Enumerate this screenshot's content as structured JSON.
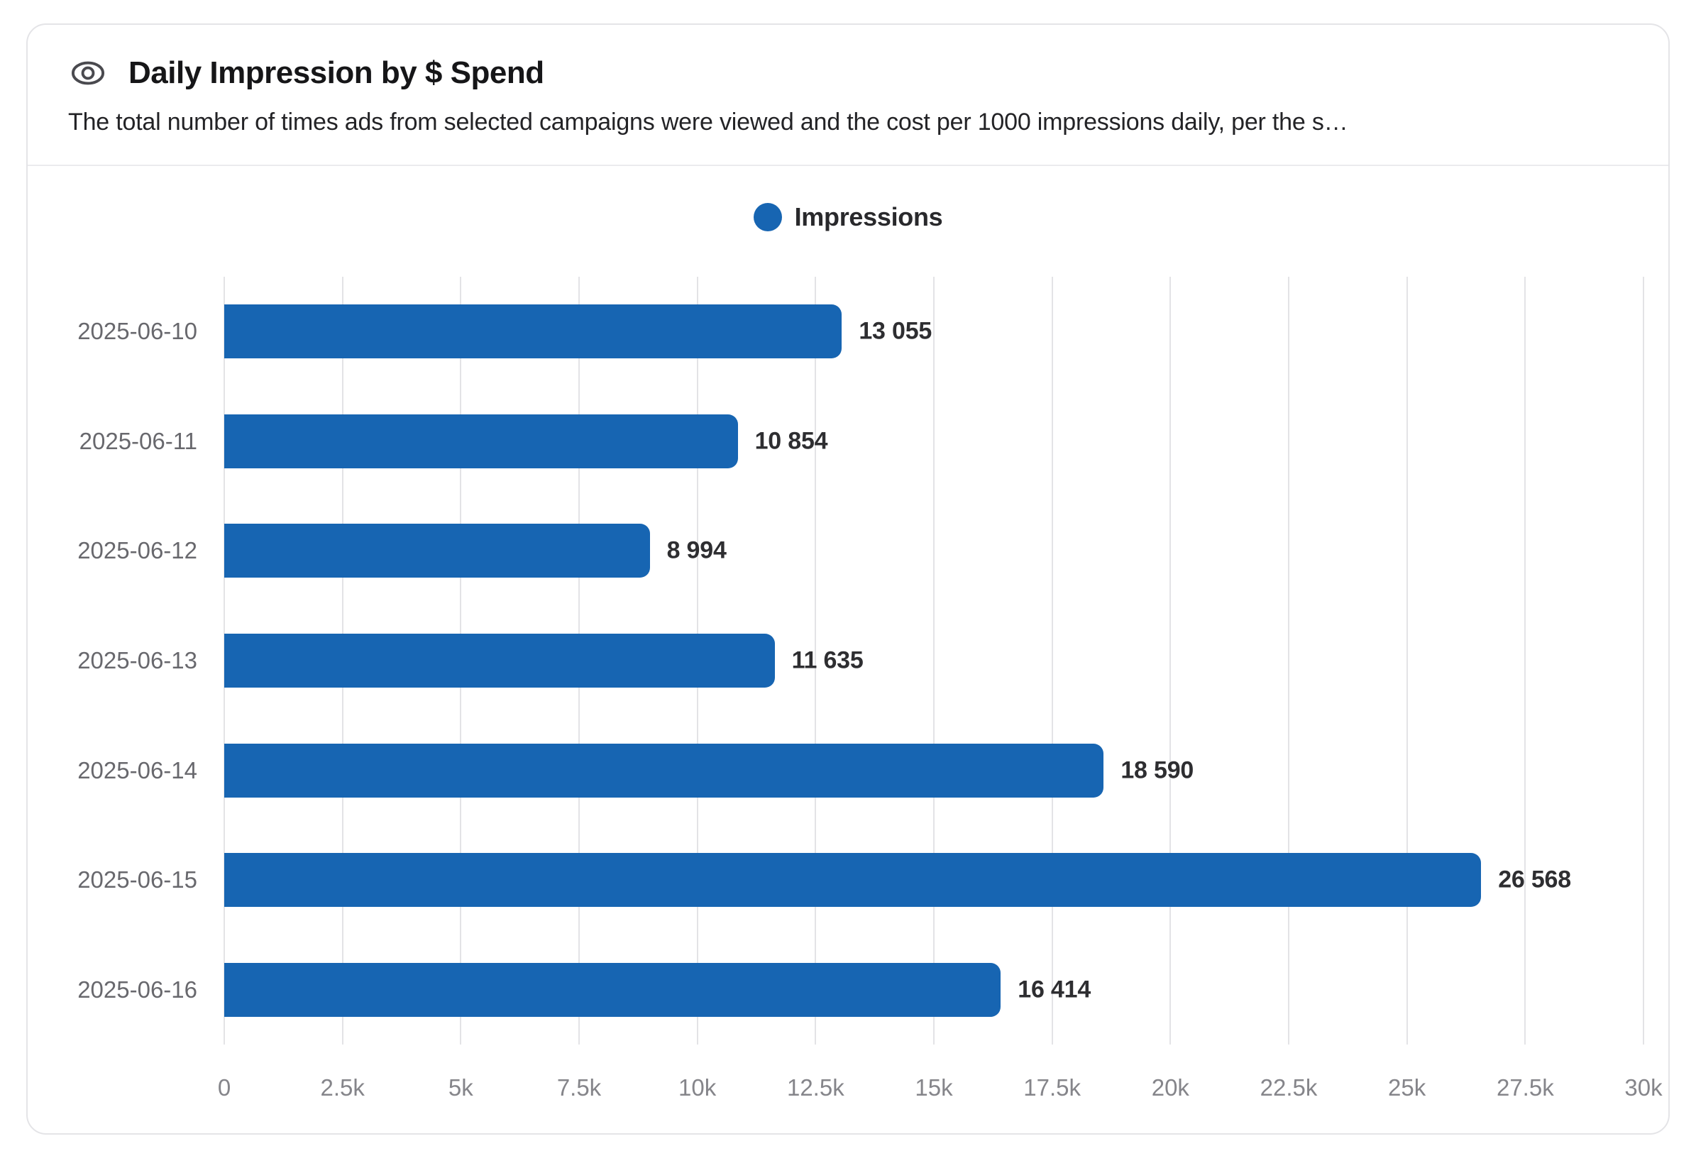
{
  "header": {
    "title": "Daily Impression by $ Spend",
    "subtitle": "The total number of times ads from selected campaigns were viewed and the cost per 1000 impressions daily, per the s…",
    "icon": "eye-icon"
  },
  "legend": {
    "label": "Impressions",
    "color": "#1765b2",
    "position": "top-center"
  },
  "colors": {
    "bar_blue": "#1765b2",
    "gridline": "#e3e3e6",
    "card_border": "#e4e4e7",
    "title_text": "#161618",
    "category_text": "#68686d",
    "axis_text": "#85858a",
    "value_text": "#2e2e31"
  },
  "chart_data": {
    "type": "bar",
    "orientation": "horizontal",
    "title": "Daily Impression by $ Spend",
    "xlabel": "",
    "ylabel": "",
    "categories": [
      "2025-06-10",
      "2025-06-11",
      "2025-06-12",
      "2025-06-13",
      "2025-06-14",
      "2025-06-15",
      "2025-06-16"
    ],
    "series": [
      {
        "name": "Impressions",
        "color": "#1765b2",
        "values": [
          13055,
          10854,
          8994,
          11635,
          18590,
          26568,
          16414
        ],
        "value_labels": [
          "13 055",
          "10 854",
          "8 994",
          "11 635",
          "18 590",
          "26 568",
          "16 414"
        ]
      }
    ],
    "xlim": [
      0,
      30000
    ],
    "x_ticks": [
      {
        "value": 0,
        "label": "0"
      },
      {
        "value": 2500,
        "label": "2.5k"
      },
      {
        "value": 5000,
        "label": "5k"
      },
      {
        "value": 7500,
        "label": "7.5k"
      },
      {
        "value": 10000,
        "label": "10k"
      },
      {
        "value": 12500,
        "label": "12.5k"
      },
      {
        "value": 15000,
        "label": "15k"
      },
      {
        "value": 17500,
        "label": "17.5k"
      },
      {
        "value": 20000,
        "label": "20k"
      },
      {
        "value": 22500,
        "label": "22.5k"
      },
      {
        "value": 25000,
        "label": "25k"
      },
      {
        "value": 27500,
        "label": "27.5k"
      },
      {
        "value": 30000,
        "label": "30k"
      }
    ],
    "grid": true,
    "legend_position": "top-center"
  }
}
